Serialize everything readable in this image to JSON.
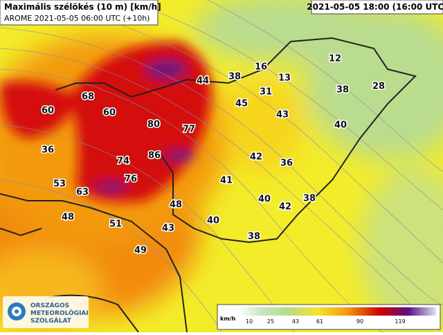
{
  "header": {
    "title": "Maximális szélökés (10 m) [km/h]",
    "run": "AROME 2021-05-05 06:00 UTC (+10h)",
    "valid": "2021-05-05 18:00 (16:00 UTC)"
  },
  "labels": [
    60,
    68,
    60,
    80,
    77,
    44,
    38,
    16,
    13,
    12,
    31,
    38,
    28,
    45,
    43,
    40,
    36,
    86,
    74,
    76,
    42,
    36,
    53,
    63,
    41,
    40,
    42,
    38,
    48,
    48,
    51,
    43,
    40,
    38,
    49
  ],
  "legend": {
    "unit": "km/h",
    "ticks": [
      10,
      25,
      43,
      61,
      90,
      119
    ]
  },
  "logo": [
    "ORSZÁGOS",
    "METEOROLÓGIAI",
    "SZOLGÁLAT"
  ]
}
